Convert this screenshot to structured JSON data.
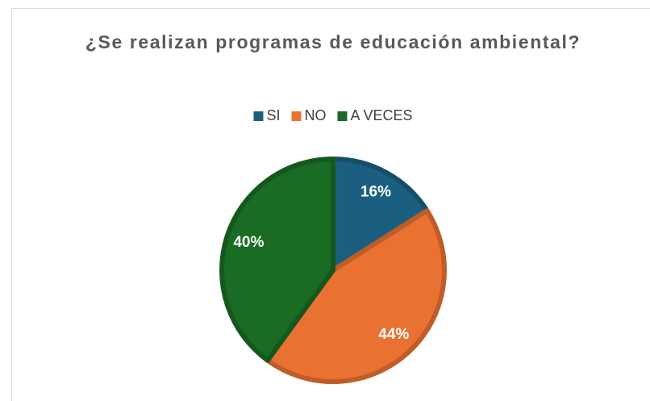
{
  "chart_data": {
    "type": "pie",
    "title": "¿Se realizan programas de educación ambiental?",
    "categories": [
      "SI",
      "NO",
      "A VECES"
    ],
    "values": [
      16,
      44,
      40
    ],
    "value_labels": [
      "16%",
      "44%",
      "40%"
    ],
    "colors": [
      "#1b5f80",
      "#e97132",
      "#1a6b24"
    ],
    "legend": "top"
  }
}
